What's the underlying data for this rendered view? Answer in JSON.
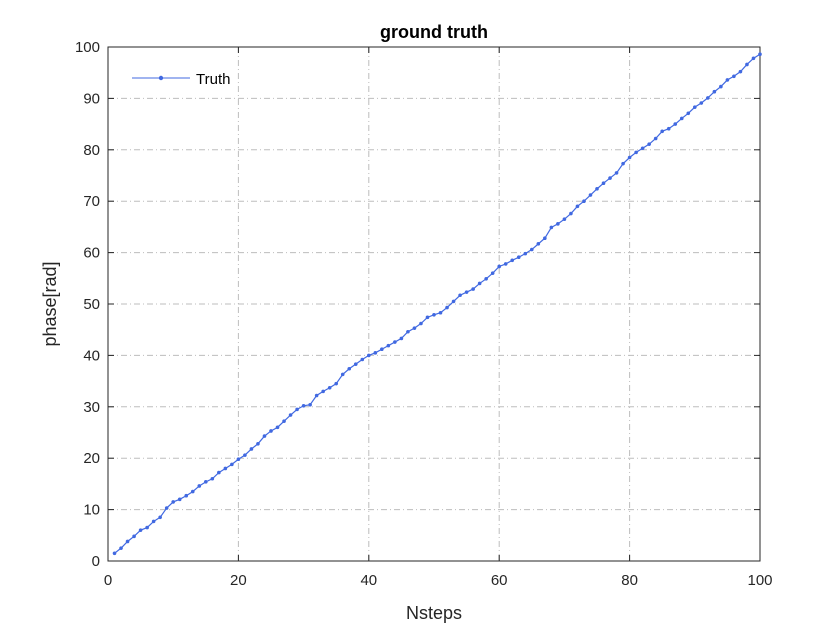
{
  "chart_data": {
    "type": "line",
    "title": "ground truth",
    "xlabel": "Nsteps",
    "ylabel": "phase[rad]",
    "xlim": [
      0,
      100
    ],
    "ylim": [
      0,
      100
    ],
    "xticks": [
      0,
      20,
      40,
      60,
      80,
      100
    ],
    "yticks": [
      0,
      10,
      20,
      30,
      40,
      50,
      60,
      70,
      80,
      90,
      100
    ],
    "xtick_labels": [
      "0",
      "20",
      "40",
      "60",
      "80",
      "100"
    ],
    "ytick_labels": [
      "0",
      "10",
      "20",
      "30",
      "40",
      "50",
      "60",
      "70",
      "80",
      "90",
      "100"
    ],
    "grid": true,
    "legend_position": "top-left",
    "series": [
      {
        "name": "Truth",
        "color": "#4169E1",
        "marker": "dot",
        "x": [
          1,
          2,
          3,
          4,
          5,
          6,
          7,
          8,
          9,
          10,
          11,
          12,
          13,
          14,
          15,
          16,
          17,
          18,
          19,
          20,
          21,
          22,
          23,
          24,
          25,
          26,
          27,
          28,
          29,
          30,
          31,
          32,
          33,
          34,
          35,
          36,
          37,
          38,
          39,
          40,
          41,
          42,
          43,
          44,
          45,
          46,
          47,
          48,
          49,
          50,
          51,
          52,
          53,
          54,
          55,
          56,
          57,
          58,
          59,
          60,
          61,
          62,
          63,
          64,
          65,
          66,
          67,
          68,
          69,
          70,
          71,
          72,
          73,
          74,
          75,
          76,
          77,
          78,
          79,
          80,
          81,
          82,
          83,
          84,
          85,
          86,
          87,
          88,
          89,
          90,
          91,
          92,
          93,
          94,
          95,
          96,
          97,
          98,
          99,
          100
        ],
        "values": [
          1.5,
          2.5,
          3.8,
          4.8,
          6.0,
          6.5,
          7.7,
          8.5,
          10.3,
          11.5,
          12.0,
          12.7,
          13.5,
          14.6,
          15.4,
          16.0,
          17.2,
          18.0,
          18.8,
          19.8,
          20.6,
          21.8,
          22.8,
          24.3,
          25.3,
          26.0,
          27.2,
          28.4,
          29.5,
          30.2,
          30.4,
          32.2,
          33.0,
          33.7,
          34.5,
          36.3,
          37.4,
          38.3,
          39.2,
          40.0,
          40.5,
          41.2,
          41.9,
          42.6,
          43.3,
          44.6,
          45.3,
          46.2,
          47.4,
          47.9,
          48.3,
          49.3,
          50.5,
          51.7,
          52.3,
          52.9,
          54.0,
          54.9,
          56.0,
          57.3,
          57.8,
          58.5,
          59.1,
          59.8,
          60.6,
          61.7,
          62.8,
          64.9,
          65.6,
          66.5,
          67.6,
          69.0,
          70.0,
          71.2,
          72.4,
          73.5,
          74.5,
          75.5,
          77.3,
          78.5,
          79.5,
          80.3,
          81.1,
          82.2,
          83.6,
          84.1,
          85.0,
          86.1,
          87.1,
          88.3,
          89.1,
          90.1,
          91.3,
          92.3,
          93.6,
          94.3,
          95.2,
          96.6,
          97.8,
          98.6
        ]
      }
    ]
  }
}
